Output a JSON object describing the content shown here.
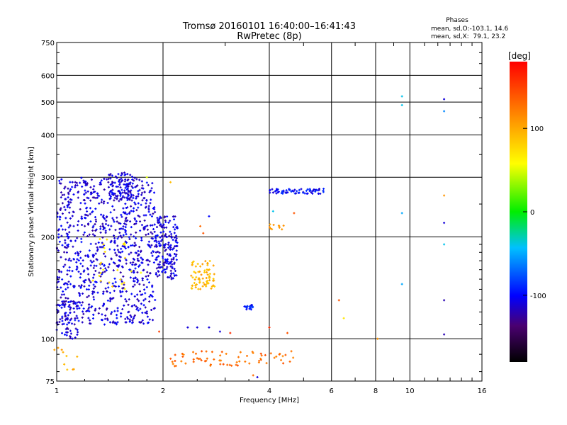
{
  "chart_data": {
    "type": "scatter",
    "title": "Tromsø 20160101 16:40:00–16:41:43",
    "subtitle": "RwPretec (8p)",
    "xlabel": "Frequency [MHz]",
    "ylabel": "Stationary phase Virtual Height [km]",
    "xscale": "log",
    "yscale": "log",
    "xlim": [
      1,
      16
    ],
    "ylim": [
      75,
      750
    ],
    "xticks": [
      1,
      2,
      4,
      6,
      8,
      10,
      16
    ],
    "yticks": [
      75,
      100,
      200,
      300,
      400,
      500,
      600,
      750
    ],
    "grid": true,
    "phase_box": {
      "title": "Phases",
      "line_o": "mean, sd,O:-103.1, 14.6",
      "line_x": "mean, sd,X:  79.1, 23.2"
    },
    "colorbar": {
      "label": "[deg]",
      "range": [
        -180,
        180
      ],
      "ticks": [
        100,
        0,
        -100
      ]
    },
    "clusters": [
      {
        "f": [
          1.0,
          1.9
        ],
        "h": [
          110,
          300
        ],
        "phase": -110,
        "count": 900
      },
      {
        "f": [
          1.0,
          1.15
        ],
        "h": [
          100,
          130
        ],
        "phase": -110,
        "count": 60
      },
      {
        "f": [
          1.4,
          1.65
        ],
        "h": [
          255,
          310
        ],
        "phase": -110,
        "count": 80
      },
      {
        "f": [
          1.25,
          1.8
        ],
        "h": [
          140,
          200
        ],
        "phase": 70,
        "count": 25
      },
      {
        "f": [
          1.9,
          2.2
        ],
        "h": [
          150,
          230
        ],
        "phase": -110,
        "count": 180
      },
      {
        "f": [
          2.4,
          2.8
        ],
        "h": [
          140,
          170
        ],
        "phase": 95,
        "count": 70
      },
      {
        "f": [
          3.4,
          3.6
        ],
        "h": [
          122,
          126
        ],
        "phase": -95,
        "count": 20
      },
      {
        "f": [
          4.0,
          5.7
        ],
        "h": [
          268,
          278
        ],
        "phase": -100,
        "count": 70
      },
      {
        "f": [
          4.0,
          4.4
        ],
        "h": [
          210,
          218
        ],
        "phase": 110,
        "count": 10
      },
      {
        "f": [
          2.1,
          4.8
        ],
        "h": [
          83,
          92
        ],
        "phase": 130,
        "count": 70
      },
      {
        "f": [
          0.98,
          1.15
        ],
        "h": [
          80,
          95
        ],
        "phase": 100,
        "count": 10
      }
    ],
    "points": [
      {
        "f": 9.5,
        "h": 520,
        "phase": -40
      },
      {
        "f": 9.5,
        "h": 490,
        "phase": -40
      },
      {
        "f": 9.5,
        "h": 235,
        "phase": -50
      },
      {
        "f": 9.5,
        "h": 145,
        "phase": -50
      },
      {
        "f": 12.5,
        "h": 510,
        "phase": -110
      },
      {
        "f": 12.5,
        "h": 470,
        "phase": -60
      },
      {
        "f": 12.5,
        "h": 220,
        "phase": -110
      },
      {
        "f": 12.5,
        "h": 190,
        "phase": -40
      },
      {
        "f": 12.5,
        "h": 130,
        "phase": -120
      },
      {
        "f": 12.5,
        "h": 103,
        "phase": -120
      },
      {
        "f": 12.5,
        "h": 265,
        "phase": 110
      },
      {
        "f": 8.1,
        "h": 100,
        "phase": 110
      },
      {
        "f": 6.3,
        "h": 130,
        "phase": 140
      },
      {
        "f": 6.5,
        "h": 115,
        "phase": 70
      },
      {
        "f": 4.7,
        "h": 235,
        "phase": 140
      },
      {
        "f": 4.1,
        "h": 238,
        "phase": -40
      },
      {
        "f": 4.0,
        "h": 108,
        "phase": 160
      },
      {
        "f": 4.5,
        "h": 104,
        "phase": 140
      },
      {
        "f": 3.1,
        "h": 104,
        "phase": 160
      },
      {
        "f": 2.9,
        "h": 105,
        "phase": -110
      },
      {
        "f": 2.7,
        "h": 108,
        "phase": -110
      },
      {
        "f": 2.5,
        "h": 108,
        "phase": -110
      },
      {
        "f": 2.35,
        "h": 108,
        "phase": -110
      },
      {
        "f": 1.95,
        "h": 105,
        "phase": 150
      },
      {
        "f": 2.7,
        "h": 230,
        "phase": -100
      },
      {
        "f": 2.55,
        "h": 215,
        "phase": 130
      },
      {
        "f": 2.6,
        "h": 205,
        "phase": 140
      },
      {
        "f": 2.1,
        "h": 290,
        "phase": 90
      },
      {
        "f": 1.8,
        "h": 300,
        "phase": 50
      },
      {
        "f": 3.7,
        "h": 77,
        "phase": -110
      },
      {
        "f": 3.6,
        "h": 78,
        "phase": 130
      }
    ]
  }
}
